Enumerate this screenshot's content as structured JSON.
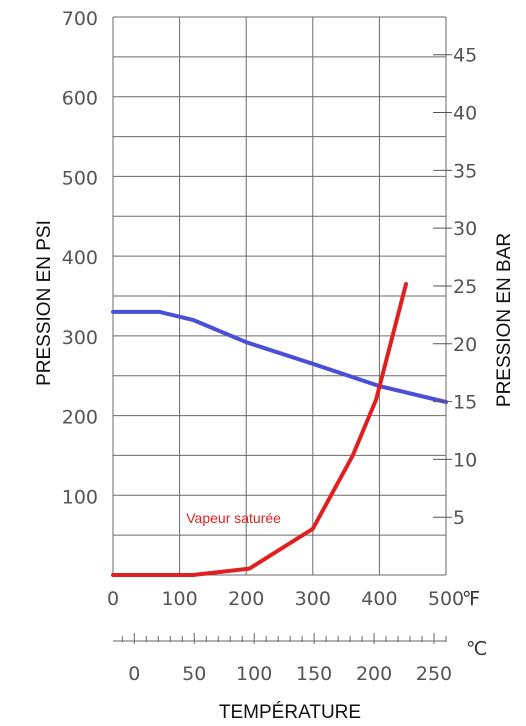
{
  "chart_data": {
    "type": "line",
    "title": "",
    "xlabel": "TEMPÉRATURE",
    "ylabel_left": "PRESSION EN PSI",
    "ylabel_right": "PRESSION EN BAR",
    "x_unit": "℉",
    "x2_unit": "℃",
    "xlim": [
      0,
      500
    ],
    "ylim": [
      0,
      700
    ],
    "y2lim": [
      0,
      48.26
    ],
    "x_ticks": [
      "0",
      "100",
      "200",
      "300",
      "400",
      "500"
    ],
    "y_ticks": [
      "100",
      "200",
      "300",
      "400",
      "500",
      "600",
      "700"
    ],
    "y2_ticks": [
      "5",
      "10",
      "15",
      "20",
      "25",
      "30",
      "35",
      "40",
      "45"
    ],
    "x2_ticks": [
      "0",
      "50",
      "100",
      "150",
      "200",
      "250"
    ],
    "grid": true,
    "colors": {
      "red": "#e02020",
      "blue": "#4a4fd8"
    },
    "series": [
      {
        "name": "",
        "color": "blue",
        "x": [
          0,
          70,
          120,
          200,
          300,
          400,
          500
        ],
        "y": [
          330,
          330,
          320,
          292,
          265,
          237,
          217
        ]
      },
      {
        "name": "Vapeur saturée",
        "color": "red",
        "x": [
          0,
          120,
          205,
          300,
          360,
          395,
          440
        ],
        "y": [
          0,
          0,
          8,
          58,
          150,
          220,
          365
        ]
      }
    ],
    "annotations": [
      {
        "text": "Vapeur saturée",
        "x": 110,
        "y": 65,
        "color": "red"
      }
    ]
  }
}
